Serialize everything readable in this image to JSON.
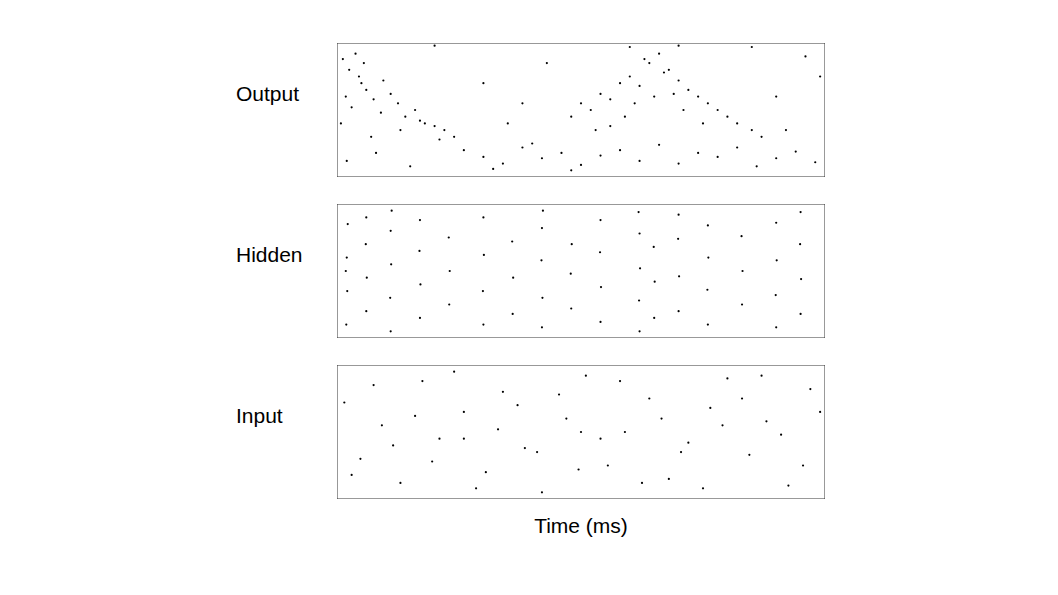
{
  "chart_data": [
    {
      "type": "scatter",
      "ylabel": "Output",
      "xlim": [
        0,
        1000
      ],
      "ylim": [
        0,
        100
      ],
      "tick_labels": false,
      "color": "#000000",
      "x": [
        12,
        25,
        38,
        50,
        18,
        30,
        45,
        60,
        75,
        90,
        110,
        125,
        140,
        160,
        180,
        200,
        220,
        240,
        8,
        55,
        70,
        95,
        130,
        170,
        210,
        20,
        80,
        150,
        260,
        300,
        340,
        380,
        420,
        460,
        500,
        540,
        580,
        620,
        660,
        700,
        740,
        780,
        820,
        860,
        900,
        940,
        980,
        320,
        400,
        480,
        480,
        500,
        520,
        540,
        560,
        580,
        600,
        620,
        640,
        660,
        680,
        700,
        720,
        740,
        760,
        780,
        800,
        820,
        850,
        870,
        590,
        630,
        650,
        670,
        710,
        560,
        610,
        690,
        750,
        530,
        300,
        380,
        430,
        900,
        960,
        350,
        920,
        990,
        200,
        600,
        700,
        850
      ],
      "y": [
        88,
        80,
        92,
        70,
        60,
        52,
        75,
        65,
        58,
        48,
        62,
        55,
        45,
        50,
        40,
        38,
        35,
        30,
        40,
        85,
        30,
        72,
        35,
        42,
        28,
        12,
        18,
        8,
        20,
        15,
        10,
        22,
        14,
        18,
        9,
        16,
        20,
        12,
        24,
        10,
        18,
        15,
        22,
        8,
        14,
        19,
        11,
        6,
        25,
        5,
        45,
        55,
        50,
        62,
        58,
        70,
        75,
        68,
        85,
        92,
        80,
        72,
        65,
        60,
        55,
        50,
        45,
        40,
        35,
        30,
        45,
        88,
        60,
        78,
        50,
        38,
        55,
        62,
        40,
        35,
        70,
        55,
        85,
        60,
        90,
        40,
        35,
        75,
        98,
        97,
        98,
        97
      ]
    },
    {
      "type": "scatter",
      "ylabel": "Hidden",
      "xlim": [
        0,
        1000
      ],
      "ylim": [
        0,
        100
      ],
      "tick_labels": false,
      "color": "#000000",
      "x": [
        19,
        21,
        20,
        22,
        18,
        60,
        61,
        59,
        60,
        110,
        109,
        111,
        110,
        112,
        170,
        171,
        169,
        170,
        230,
        231,
        229,
        300,
        299,
        301,
        300,
        360,
        361,
        359,
        420,
        421,
        419,
        420,
        422,
        480,
        479,
        481,
        540,
        541,
        539,
        540,
        620,
        619,
        621,
        620,
        618,
        650,
        651,
        649,
        700,
        701,
        699,
        700,
        760,
        759,
        761,
        760,
        830,
        831,
        829,
        900,
        899,
        901,
        900,
        950,
        951,
        949,
        950
      ],
      "y": [
        10,
        35,
        60,
        85,
        50,
        20,
        45,
        70,
        90,
        5,
        30,
        55,
        80,
        95,
        15,
        40,
        65,
        88,
        25,
        50,
        75,
        10,
        35,
        62,
        90,
        18,
        45,
        72,
        8,
        30,
        58,
        82,
        95,
        22,
        48,
        70,
        12,
        38,
        64,
        88,
        5,
        28,
        52,
        78,
        94,
        15,
        42,
        68,
        20,
        46,
        74,
        92,
        10,
        36,
        60,
        84,
        25,
        50,
        76,
        8,
        32,
        58,
        86,
        18,
        44,
        70,
        94
      ]
    },
    {
      "type": "scatter",
      "ylabel": "Input",
      "xlabel": "Time (ms)",
      "xlim": [
        0,
        1000
      ],
      "ylim": [
        0,
        100
      ],
      "tick_labels": false,
      "color": "#000000",
      "x": [
        15,
        48,
        92,
        130,
        175,
        210,
        260,
        305,
        340,
        385,
        420,
        470,
        510,
        555,
        590,
        640,
        680,
        720,
        765,
        800,
        845,
        880,
        925,
        970,
        30,
        75,
        115,
        160,
        195,
        240,
        285,
        330,
        370,
        410,
        455,
        495,
        540,
        580,
        625,
        665,
        705,
        750,
        790,
        830,
        870,
        910,
        955,
        990,
        500,
        260
      ],
      "y": [
        72,
        30,
        55,
        12,
        88,
        45,
        65,
        20,
        80,
        38,
        5,
        60,
        92,
        25,
        50,
        75,
        15,
        42,
        68,
        90,
        33,
        58,
        10,
        82,
        18,
        85,
        40,
        62,
        28,
        95,
        8,
        52,
        70,
        35,
        78,
        22,
        45,
        88,
        12,
        60,
        35,
        8,
        55,
        75,
        92,
        48,
        25,
        65,
        50,
        45
      ]
    }
  ]
}
